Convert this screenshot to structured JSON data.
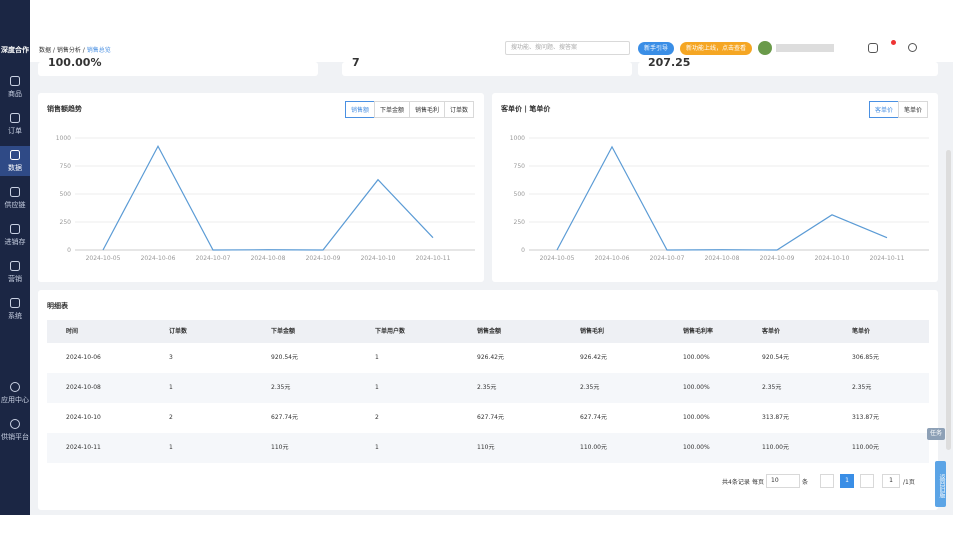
{
  "sidebar": {
    "brand": "深度合作",
    "items": [
      "商品",
      "订单",
      "数据",
      "供应链",
      "进销存",
      "营销",
      "系统"
    ],
    "bottom_items": [
      "应用中心",
      "供销平台"
    ]
  },
  "header": {
    "breadcrumb": [
      "数据",
      "销售分析",
      "销售总览"
    ],
    "search_placeholder": "搜功能、搜问题、搜答案",
    "buttons": [
      "新手引导",
      "新功能上线，点击查看"
    ]
  },
  "summary_values": [
    "100.00%",
    "7",
    "207.25"
  ],
  "chart_data": [
    {
      "type": "line",
      "title": "销售额趋势",
      "tabs": [
        "销售额",
        "下单金额",
        "销售毛利",
        "订单数"
      ],
      "active_tab": 0,
      "categories": [
        "2024-10-05",
        "2024-10-06",
        "2024-10-07",
        "2024-10-08",
        "2024-10-09",
        "2024-10-10",
        "2024-10-11"
      ],
      "values": [
        0,
        926.42,
        0,
        2.35,
        0,
        627.74,
        110
      ],
      "color": "#5b9bd5",
      "ylim": [
        0,
        1000
      ],
      "yticks": [
        0,
        250,
        500,
        750,
        1000
      ],
      "grid": true
    },
    {
      "type": "line",
      "title": "客单价 | 笔单价",
      "tabs": [
        "客单价",
        "笔单价"
      ],
      "active_tab": 0,
      "categories": [
        "2024-10-05",
        "2024-10-06",
        "2024-10-07",
        "2024-10-08",
        "2024-10-09",
        "2024-10-10",
        "2024-10-11"
      ],
      "values": [
        0,
        920.54,
        0,
        2.35,
        0,
        313.87,
        110
      ],
      "color": "#5b9bd5",
      "ylim": [
        0,
        1000
      ],
      "yticks": [
        0,
        250,
        500,
        750,
        1000
      ],
      "grid": true
    }
  ],
  "table": {
    "title": "明细表",
    "headers": [
      "时间",
      "订单数",
      "下单金额",
      "下单用户数",
      "销售金额",
      "销售毛利",
      "销售毛利率",
      "客单价",
      "笔单价"
    ],
    "rows": [
      [
        "2024-10-06",
        "3",
        "920.54元",
        "1",
        "926.42元",
        "926.42元",
        "100.00%",
        "920.54元",
        "306.85元"
      ],
      [
        "2024-10-08",
        "1",
        "2.35元",
        "1",
        "2.35元",
        "2.35元",
        "100.00%",
        "2.35元",
        "2.35元"
      ],
      [
        "2024-10-10",
        "2",
        "627.74元",
        "2",
        "627.74元",
        "627.74元",
        "100.00%",
        "313.87元",
        "313.87元"
      ],
      [
        "2024-10-11",
        "1",
        "110元",
        "1",
        "110元",
        "110.00元",
        "100.00%",
        "110.00元",
        "110.00元"
      ]
    ]
  },
  "pagination": {
    "total": "共4条记录",
    "per_page_label": "每页",
    "page_size": "10",
    "unit": "条",
    "current_page": "1",
    "goto_page": "1",
    "total_pages": "/1页"
  },
  "side_tools": {
    "task": "任务",
    "back": "返回旧版"
  }
}
